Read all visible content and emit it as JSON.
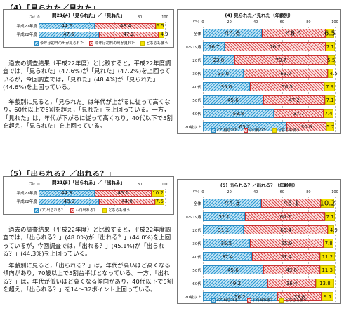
{
  "section1": {
    "heading": "（4）「見られた／見れた」",
    "small_chart": {
      "title": "問21(4)「見られた」／「見れた」",
      "unit": "(%)",
      "ticks": [
        "0",
        "20",
        "40",
        "60",
        "80",
        "100"
      ],
      "rows": [
        {
          "label": "平成27年度",
          "values": [
            44.6,
            48.4,
            6.5
          ]
        },
        {
          "label": "平成22年度",
          "values": [
            47.6,
            47.2,
            4.9
          ]
        }
      ],
      "legend": [
        "今年は初日の出が見られた",
        "今年は初日の出が見れた",
        "どちらも使う"
      ]
    },
    "age_chart": {
      "title": "(4) 見られた／見れた（年齢別）",
      "unit": "(%)",
      "ticks": [
        "0",
        "20",
        "40",
        "60",
        "80",
        "100"
      ],
      "rows": [
        {
          "label": "全体",
          "values": [
            44.6,
            48.4,
            6.5
          ]
        },
        {
          "label": "16～19歳",
          "values": [
            16.7,
            76.2,
            7.1
          ]
        },
        {
          "label": "20代",
          "values": [
            23.8,
            70.7,
            5.5
          ]
        },
        {
          "label": "30代",
          "values": [
            31.0,
            63.7,
            4.5
          ]
        },
        {
          "label": "40代",
          "values": [
            35.6,
            56.5,
            7.9
          ]
        },
        {
          "label": "50代",
          "values": [
            45.6,
            47.2,
            7.1
          ]
        },
        {
          "label": "60代",
          "values": [
            53.8,
            37.7,
            7.4
          ]
        },
        {
          "label": "70歳以上",
          "values": [
            63.2,
            30.6,
            5.7
          ]
        }
      ],
      "legend": [
        "(ア)見られた",
        "(イ)見れた",
        "どちらも使う"
      ]
    },
    "paragraphs": [
      "過去の調査結果（平成22年度）と比較すると，平成22年度調査では，「見られた」(47.6%)が「見れた」(47.2%)を上回っているが，今回調査では，「見れた」(48.4%)が「見られた」(44.6%)を上回っている。",
      "年齢別に見ると，「見られた」は年代が上がるに従って高くなり，60代以上で5割を超え，「見れた」を上回っている。一方，「見れた」は，年代が下がるに従って高くなり，40代以下で5割を超え，「見られた」を上回っている。"
    ]
  },
  "section2": {
    "heading": "（5）「出られる？／出れる？」",
    "small_chart": {
      "title": "問21(5)「出られる」／「出れる」",
      "unit": "(%)",
      "ticks": [
        "0",
        "20",
        "40",
        "60",
        "80",
        "100"
      ],
      "rows": [
        {
          "label": "平成27年度",
          "values": [
            44.3,
            45.1,
            10.2
          ]
        },
        {
          "label": "平成22年度",
          "values": [
            48.0,
            44.0,
            7.5
          ]
        }
      ],
      "legend": [
        "(ア)出られる？",
        "(イ)出れる？",
        "どちらも使う"
      ]
    },
    "age_chart": {
      "title": "(5) 出られる？／出れる？（年齢別）",
      "unit": "(%)",
      "ticks": [
        "0",
        "20",
        "40",
        "60",
        "80",
        "100"
      ],
      "rows": [
        {
          "label": "全体",
          "values": [
            44.3,
            45.1,
            10.2
          ]
        },
        {
          "label": "16～19歳",
          "values": [
            32.1,
            60.7,
            7.1
          ]
        },
        {
          "label": "20代",
          "values": [
            31.1,
            63.4,
            4.9
          ]
        },
        {
          "label": "30代",
          "values": [
            35.5,
            55.9,
            7.8
          ]
        },
        {
          "label": "40代",
          "values": [
            37.4,
            51.4,
            11.2
          ]
        },
        {
          "label": "50代",
          "values": [
            45.6,
            43.0,
            11.3
          ]
        },
        {
          "label": "60代",
          "values": [
            49.2,
            36.4,
            13.8
          ]
        },
        {
          "label": "70歳以上",
          "values": [
            56.2,
            33.8,
            9.1
          ]
        }
      ],
      "legend": [
        "(ア)出られる？",
        "(イ)出れる？",
        "どちらも使う"
      ]
    },
    "paragraphs": [
      "過去の調査結果（平成22年度）と比較すると，平成22年度調査では，「出られる？」(48.0%)が「出れる？」(44.0%)を上回っているが，今回調査では，「出れる？」(45.1%)が「出られる？」(44.3%)を上回っている。",
      "年齢別に見ると，「出られる？」は，年代が高いほど高くなる傾向があり，70歳以上で5割台半ばとなっている。一方，「出れる？」は，年代が低いほど高くなる傾向があり，40代以下で5割を超え，「出られる？」を14～32ポイント上回っている。"
    ]
  },
  "colors": {
    "series1": "#2e9bd3",
    "series2": "#d94b4b",
    "series3": "#f5e400"
  }
}
